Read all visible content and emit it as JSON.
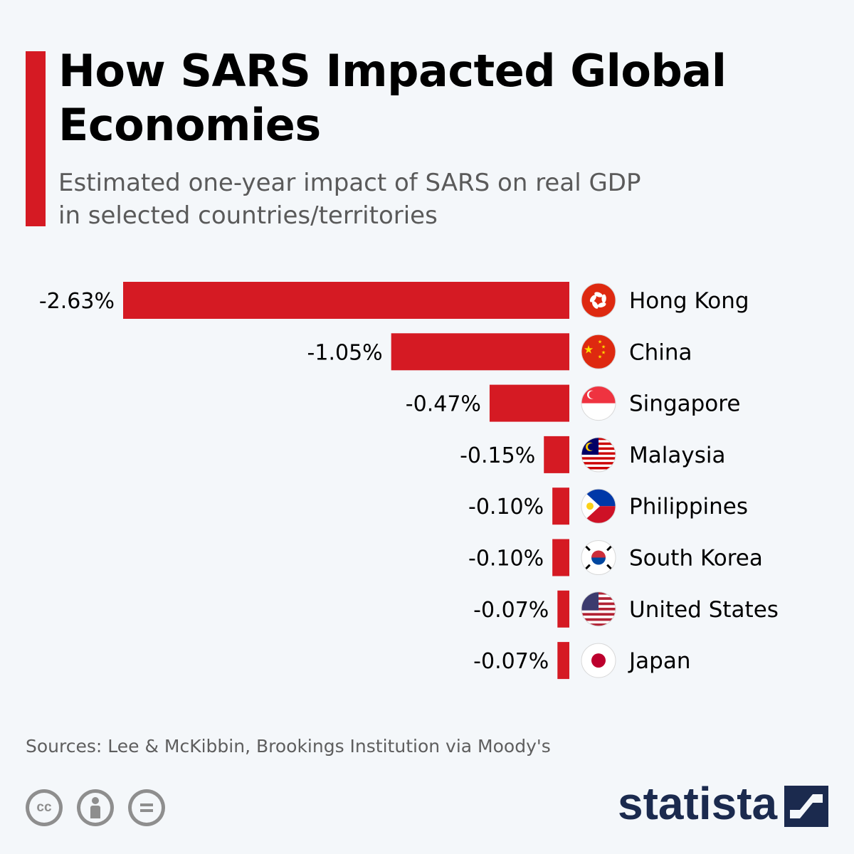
{
  "title": "How SARS Impacted Global Economies",
  "subtitle_line1": "Estimated one-year impact of SARS on real GDP",
  "subtitle_line2": "in selected countries/territories",
  "source": "Sources: Lee & McKibbin, Brookings Institution via Moody's",
  "brand": "statista",
  "colors": {
    "bar": "#d51a23",
    "accent": "#d51a23",
    "brand": "#1b2a4e"
  },
  "footer_icons": [
    "cc-icon",
    "by-attribution-icon",
    "no-derivatives-icon"
  ],
  "chart_data": {
    "type": "bar",
    "orientation": "horizontal",
    "title": "How SARS Impacted Global Economies",
    "subtitle": "Estimated one-year impact of SARS on real GDP in selected countries/territories",
    "unit": "%",
    "categories": [
      "Hong Kong",
      "China",
      "Singapore",
      "Malaysia",
      "Philippines",
      "South Korea",
      "United States",
      "Japan"
    ],
    "values": [
      -2.63,
      -1.05,
      -0.47,
      -0.15,
      -0.1,
      -0.1,
      -0.07,
      -0.07
    ],
    "value_labels": [
      "-2.63%",
      "-1.05%",
      "-0.47%",
      "-0.15%",
      "-0.10%",
      "-0.10%",
      "-0.07%",
      "-0.07%"
    ],
    "flags": [
      "hong-kong-flag-icon",
      "china-flag-icon",
      "singapore-flag-icon",
      "malaysia-flag-icon",
      "philippines-flag-icon",
      "south-korea-flag-icon",
      "united-states-flag-icon",
      "japan-flag-icon"
    ],
    "grid": false,
    "legend": "none"
  }
}
